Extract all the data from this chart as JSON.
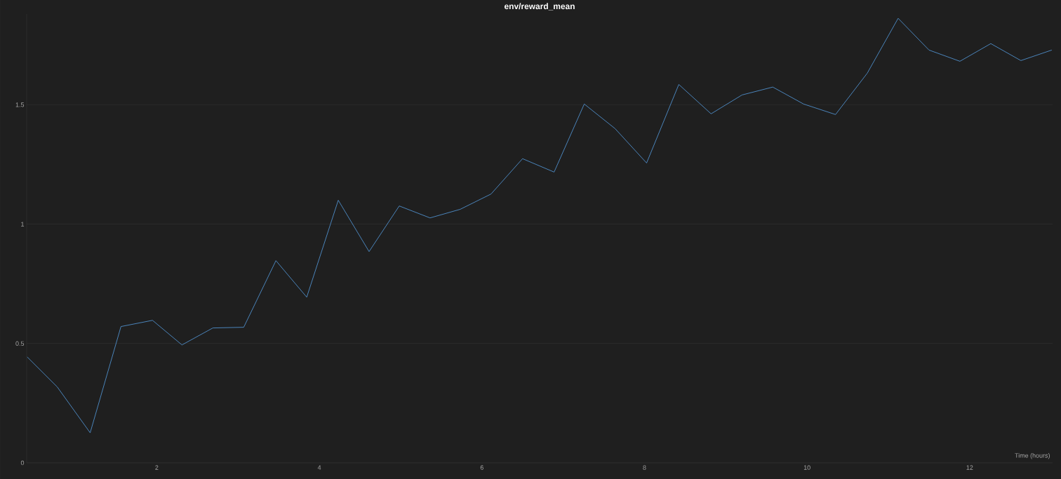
{
  "chart_data": {
    "type": "line",
    "title": "env/reward_mean",
    "xlabel": "Time (hours)",
    "x": [
      0.405,
      0.776,
      1.181,
      1.56,
      1.948,
      2.31,
      2.69,
      3.07,
      3.466,
      3.845,
      4.233,
      4.612,
      4.983,
      5.362,
      5.733,
      6.112,
      6.5,
      6.888,
      7.259,
      7.638,
      8.026,
      8.422,
      8.819,
      9.2,
      9.578,
      9.957,
      10.35,
      10.74,
      11.12,
      11.5,
      11.88,
      12.26,
      12.63,
      13.01
    ],
    "values": [
      0.444,
      0.318,
      0.126,
      0.571,
      0.597,
      0.494,
      0.565,
      0.568,
      0.847,
      0.694,
      1.1,
      0.885,
      1.076,
      1.026,
      1.062,
      1.126,
      1.274,
      1.218,
      1.503,
      1.4,
      1.256,
      1.585,
      1.462,
      1.541,
      1.574,
      1.503,
      1.459,
      1.632,
      1.862,
      1.729,
      1.682,
      1.756,
      1.685,
      1.729
    ],
    "color": "#4f8fcc",
    "xlim": [
      0.4,
      13.02
    ],
    "ylim": [
      0,
      1.88
    ],
    "xticks": [
      2,
      4,
      6,
      8,
      10,
      12
    ],
    "yticks": [
      0,
      0.5,
      1,
      1.5
    ],
    "grid": "y",
    "marker": "none",
    "line_style": "solid"
  }
}
